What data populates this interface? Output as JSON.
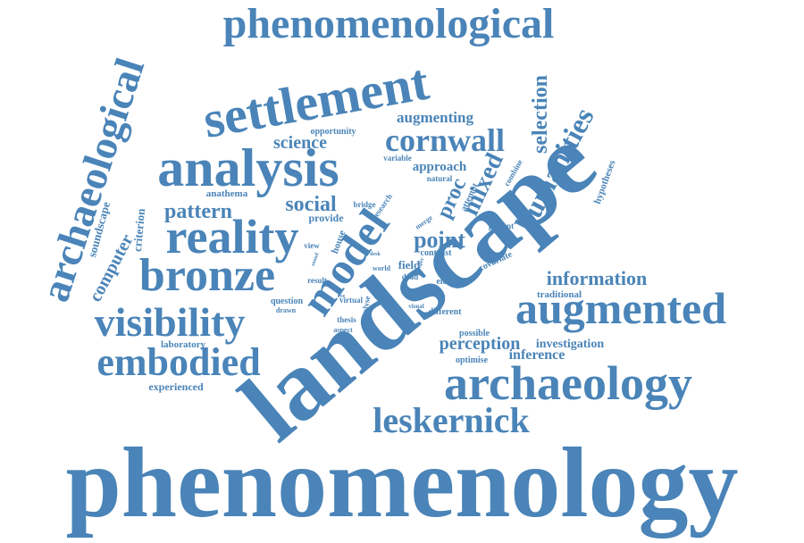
{
  "color": "#4a84b8",
  "words": [
    "phenomenology",
    "landscape",
    "phenomenological",
    "settlement",
    "analysis",
    "reality",
    "bronze",
    "archaeology",
    "augmented",
    "visibility",
    "archaeological",
    "leskernick",
    "embodied",
    "model",
    "cornwall",
    "humanities",
    "information",
    "selection",
    "pattern",
    "point",
    "mixed",
    "social",
    "augmenting",
    "science",
    "perception",
    "inference",
    "investigation",
    "proc",
    "approach",
    "computer",
    "soundscape",
    "criterion",
    "laboratory",
    "experienced",
    "anathema",
    "opportunity",
    "hypotheses",
    "variable",
    "natural",
    "attempt",
    "combine",
    "research",
    "bridge",
    "provide",
    "house",
    "view",
    "covariate",
    "present",
    "merge",
    "contrast",
    "field",
    "dead",
    "element",
    "world",
    "result",
    "question",
    "virtual",
    "drawn",
    "thesis",
    "aspect",
    "analyse",
    "different",
    "possible",
    "traditional",
    "optimise",
    "visual",
    "super",
    "sound",
    "desk",
    "eye"
  ]
}
